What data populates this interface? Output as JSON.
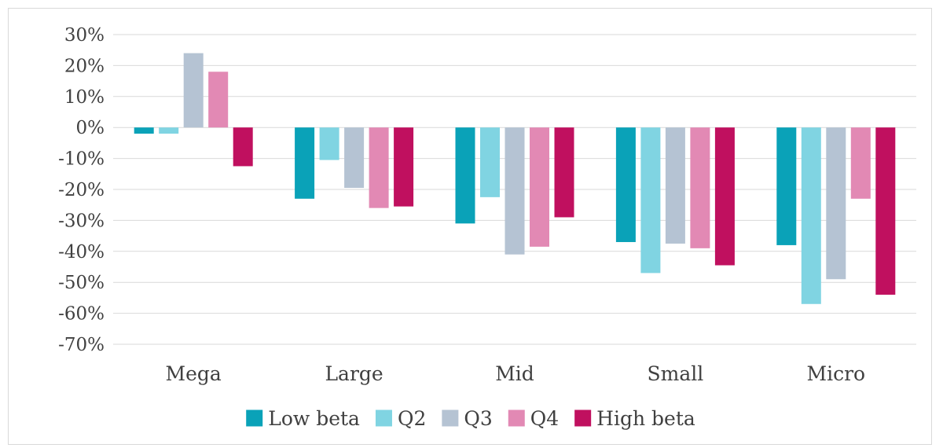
{
  "chart_data": {
    "type": "bar",
    "categories": [
      "Mega",
      "Large",
      "Mid",
      "Small",
      "Micro"
    ],
    "series": [
      {
        "name": "Low beta",
        "color": "#0aa2b8",
        "values": [
          -2,
          -23,
          -31,
          -37,
          -38
        ]
      },
      {
        "name": "Q2",
        "color": "#80d4e2",
        "values": [
          -2,
          -10.5,
          -22.5,
          -47,
          -57
        ]
      },
      {
        "name": "Q3",
        "color": "#b5c3d3",
        "values": [
          24,
          -19.5,
          -41,
          -37.5,
          -49
        ]
      },
      {
        "name": "Q4",
        "color": "#e289b4",
        "values": [
          18,
          -26,
          -38.5,
          -39,
          -23
        ]
      },
      {
        "name": "High beta",
        "color": "#c0105f",
        "values": [
          -12.5,
          -25.5,
          -29,
          -44.5,
          -54
        ]
      }
    ],
    "yticks": [
      "30%",
      "20%",
      "10%",
      "0%",
      "-10%",
      "-20%",
      "-30%",
      "-40%",
      "-50%",
      "-60%",
      "-70%"
    ],
    "ylim": [
      -70,
      30
    ],
    "grid": true,
    "legend_position": "bottom",
    "title": "",
    "xlabel": "",
    "ylabel": ""
  }
}
